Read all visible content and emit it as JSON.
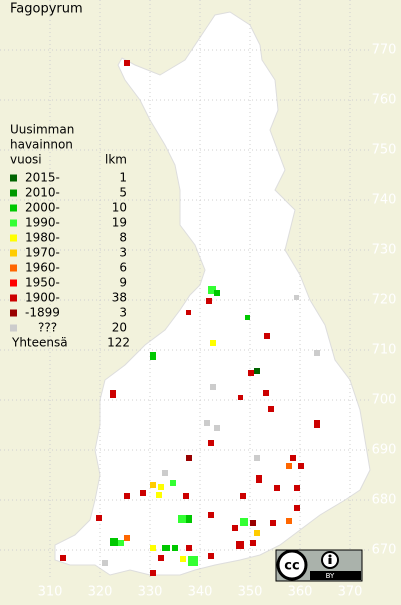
{
  "title": "Fagopyrum",
  "legend": {
    "heading": [
      "Uusimman",
      "havainnon"
    ],
    "col_year": "vuosi",
    "col_count": "lkm",
    "rows": [
      {
        "label": "2015-",
        "count": "1",
        "color": "#006400"
      },
      {
        "label": "2010-",
        "count": "5",
        "color": "#009900"
      },
      {
        "label": "2000-",
        "count": "10",
        "color": "#00c800"
      },
      {
        "label": "1990-",
        "count": "19",
        "color": "#33ff33"
      },
      {
        "label": "1980-",
        "count": "8",
        "color": "#ffff00"
      },
      {
        "label": "1970-",
        "count": "3",
        "color": "#ffcc00"
      },
      {
        "label": "1960-",
        "count": "6",
        "color": "#ff6600"
      },
      {
        "label": "1950-",
        "count": "9",
        "color": "#ff0000"
      },
      {
        "label": "1900-",
        "count": "38",
        "color": "#cc0000"
      },
      {
        "label": "-1899",
        "count": "3",
        "color": "#990000"
      },
      {
        "label": "???",
        "count": "20",
        "color": "#cccccc"
      }
    ],
    "total_label": "Yhteensä",
    "total": "122"
  },
  "grid": {
    "x_labels": [
      "310",
      "320",
      "330",
      "340",
      "350",
      "360",
      "370"
    ],
    "y_labels": [
      "770",
      "760",
      "750",
      "740",
      "730",
      "720",
      "710",
      "700",
      "690",
      "680",
      "670"
    ]
  },
  "license_badge": {
    "cc": "cc",
    "by": "BY"
  }
}
